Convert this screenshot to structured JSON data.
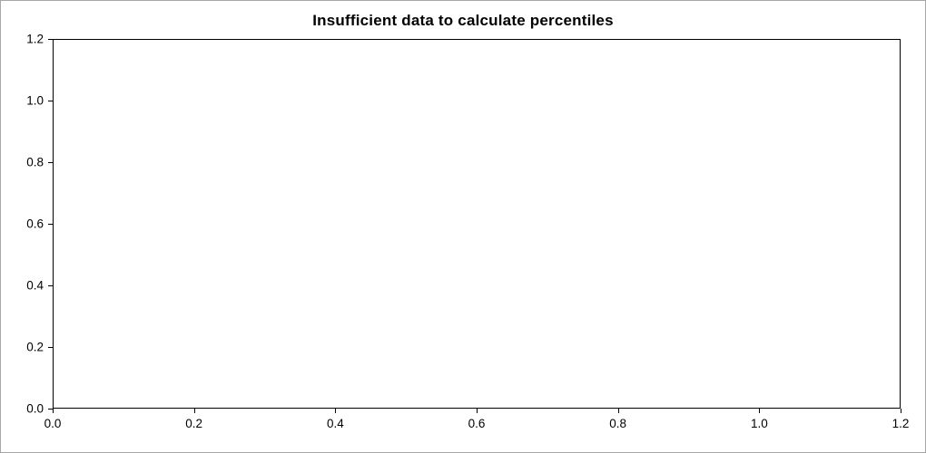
{
  "chart_data": {
    "type": "scatter",
    "title": "Insufficient data to calculate percentiles",
    "xlabel": "",
    "ylabel": "",
    "x_ticks": [
      "0.0",
      "0.2",
      "0.4",
      "0.6",
      "0.8",
      "1.0",
      "1.2"
    ],
    "y_ticks": [
      "0.0",
      "0.2",
      "0.4",
      "0.6",
      "0.8",
      "1.0",
      "1.2"
    ],
    "xlim": [
      0.0,
      1.2
    ],
    "ylim": [
      0.0,
      1.2
    ],
    "series": [],
    "grid": false,
    "legend": false,
    "note": "empty plot area - no data points rendered"
  },
  "colors": {
    "axis": "#000000",
    "title_text": "#000000",
    "plot_background": "#ffffff",
    "figure_border": "#a6a6a6"
  }
}
